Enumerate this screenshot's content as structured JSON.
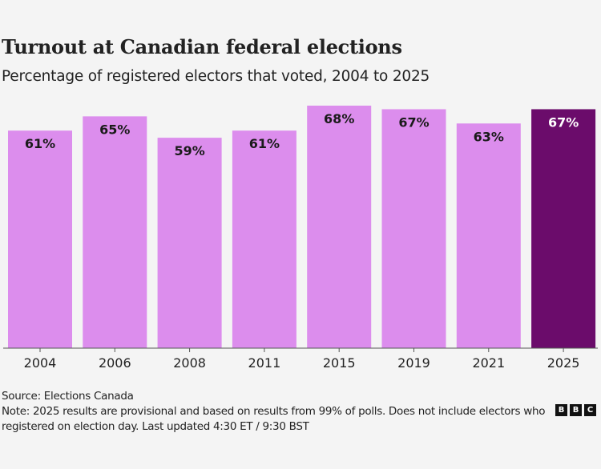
{
  "chart_data": {
    "type": "bar",
    "title": "Turnout at Canadian federal elections",
    "subtitle": "Percentage of registered electors that voted, 2004 to 2025",
    "categories": [
      "2004",
      "2006",
      "2008",
      "2011",
      "2015",
      "2019",
      "2021",
      "2025"
    ],
    "values": [
      61,
      65,
      59,
      61,
      68,
      67,
      63,
      67
    ],
    "data_labels": [
      "61%",
      "65%",
      "59%",
      "61%",
      "68%",
      "67%",
      "63%",
      "67%"
    ],
    "highlight_index": 7,
    "xlabel": "",
    "ylabel": "",
    "ylim": [
      0,
      68
    ],
    "grid": false,
    "legend": "none",
    "colors": {
      "bar": "#dc8ded",
      "highlight": "#6b0c6b",
      "label_dark": "#1a1a1a",
      "label_light": "#ffffff",
      "axis": "#555555"
    }
  },
  "footer": {
    "source": "Source: Elections Canada",
    "note": "Note: 2025 results are provisional and based on results from 99% of polls. Does not include electors who registered on election day. Last updated 4:30 ET / 9:30 BST",
    "logo_letters": [
      "B",
      "B",
      "C"
    ]
  }
}
